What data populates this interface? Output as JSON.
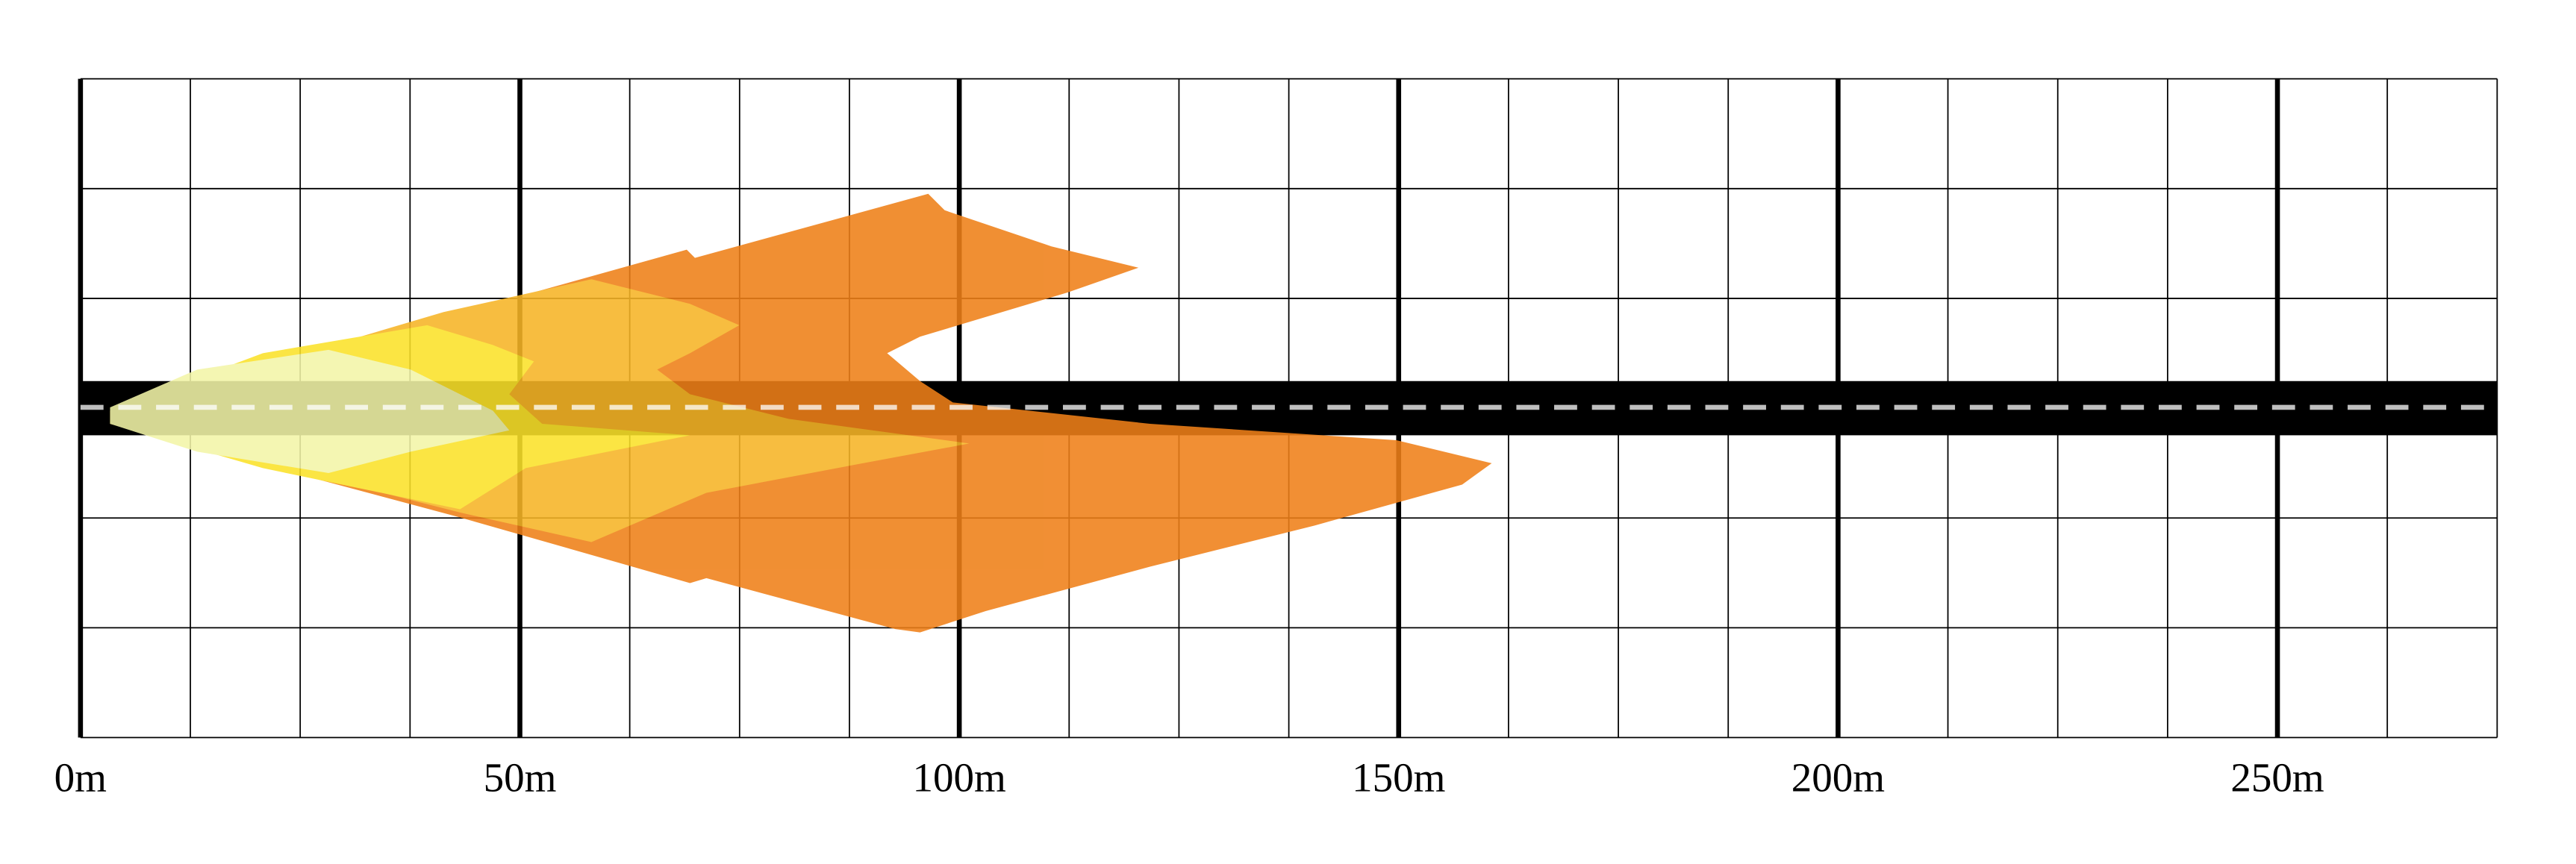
{
  "axis": {
    "labels": [
      "0m",
      "50m",
      "100m",
      "150m",
      "200m",
      "250m"
    ]
  }
}
